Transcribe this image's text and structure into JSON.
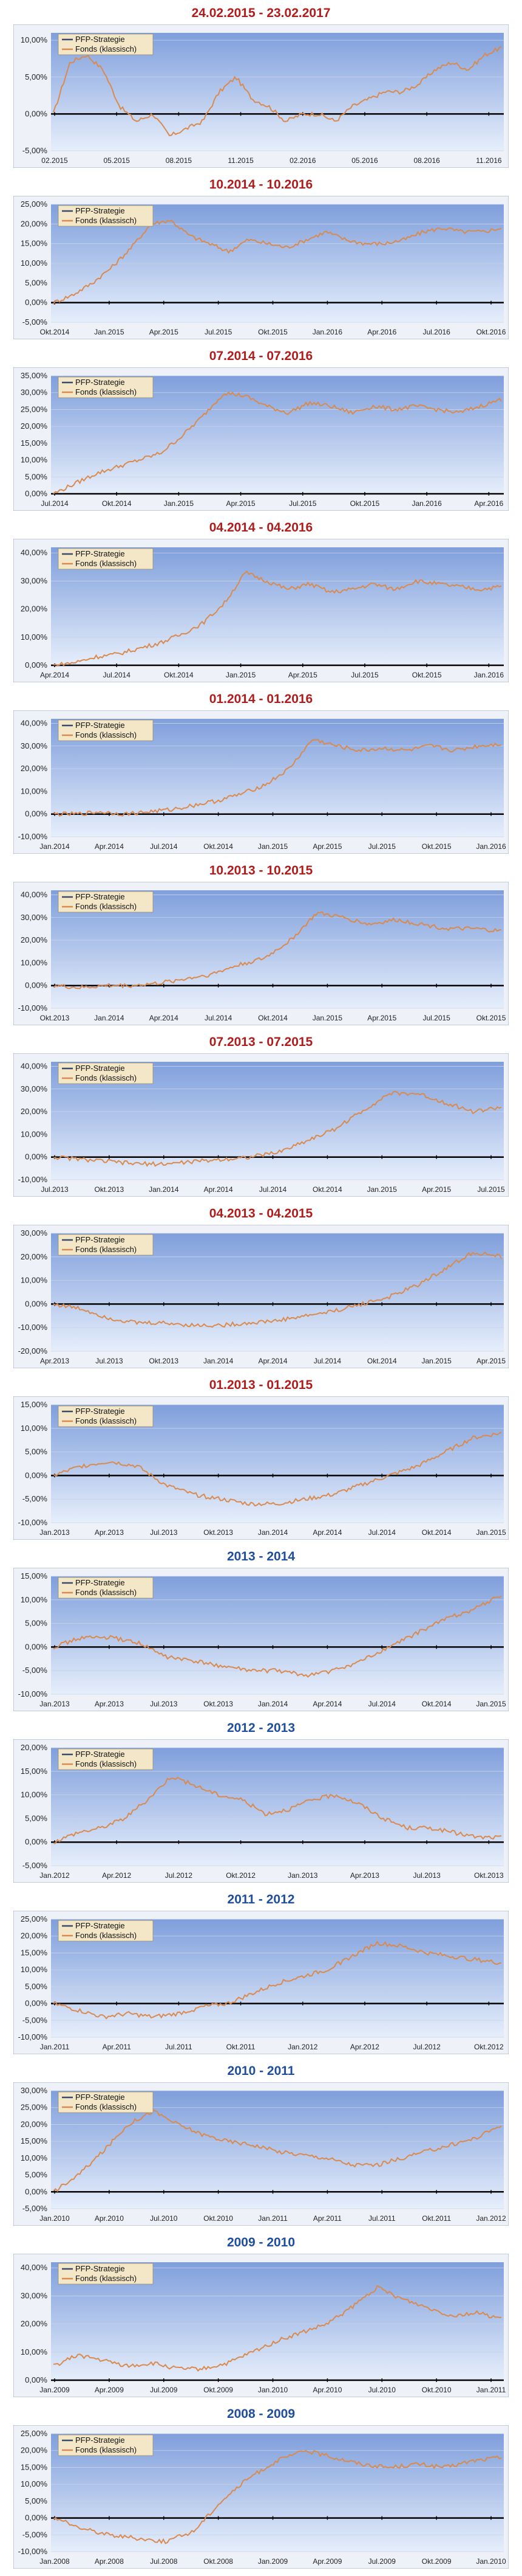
{
  "legend": {
    "series1": "PFP-Strategie",
    "series2": "Fonds (klassisch)"
  },
  "colors": {
    "series1": "#3a4a6b",
    "series2": "#d98a4f",
    "title_red": "#b01c1c",
    "title_blue": "#1f4e9c"
  },
  "chart_data": [
    {
      "type": "line",
      "title": "24.02.2015 - 23.02.2017",
      "title_color": "red",
      "yticks": [
        "10,00%",
        "5,00%",
        "0,00%",
        "-5,00%"
      ],
      "ylim": [
        -5,
        11
      ],
      "xticks": [
        "02.2015",
        "05.2015",
        "08.2015",
        "11.2015",
        "02.2016",
        "05.2016",
        "08.2016",
        "11.2016"
      ],
      "series": [
        {
          "name": "Fonds (klassisch)",
          "values": [
            0,
            7,
            8,
            6,
            1,
            -1,
            0,
            -3,
            -2,
            -1,
            3,
            5,
            2,
            1,
            -1,
            0,
            0,
            -1,
            1,
            2,
            3,
            3,
            4,
            6,
            7,
            6,
            8,
            9
          ]
        }
      ]
    },
    {
      "type": "line",
      "title": "10.2014 - 10.2016",
      "title_color": "red",
      "yticks": [
        "25,00%",
        "20,00%",
        "15,00%",
        "10,00%",
        "5,00%",
        "0,00%",
        "-5,00%"
      ],
      "ylim": [
        -5,
        25
      ],
      "xticks": [
        "Okt.2014",
        "Jan.2015",
        "Apr.2015",
        "Jul.2015",
        "Okt.2015",
        "Jan.2016",
        "Apr.2016",
        "Jul.2016",
        "Okt.2016"
      ],
      "series": [
        {
          "name": "Fonds (klassisch)",
          "values": [
            0,
            2,
            5,
            9,
            14,
            20,
            21,
            17,
            15,
            13,
            16,
            15,
            14,
            16,
            18,
            16,
            15,
            15,
            16,
            18,
            19,
            18,
            18,
            19
          ]
        }
      ]
    },
    {
      "type": "line",
      "title": "07.2014 - 07.2016",
      "title_color": "red",
      "yticks": [
        "35,00%",
        "30,00%",
        "25,00%",
        "20,00%",
        "15,00%",
        "10,00%",
        "5,00%",
        "0,00%"
      ],
      "ylim": [
        0,
        35
      ],
      "xticks": [
        "Jul.2014",
        "Okt.2014",
        "Jan.2015",
        "Apr.2015",
        "Jul.2015",
        "Okt.2015",
        "Jan.2016",
        "Apr.2016"
      ],
      "series": [
        {
          "name": "Fonds (klassisch)",
          "values": [
            0,
            3,
            6,
            8,
            10,
            12,
            17,
            23,
            30,
            29,
            26,
            24,
            27,
            26,
            24,
            26,
            25,
            26,
            25,
            24,
            26,
            28
          ]
        }
      ]
    },
    {
      "type": "line",
      "title": "04.2014 - 04.2016",
      "title_color": "red",
      "yticks": [
        "40,00%",
        "30,00%",
        "20,00%",
        "10,00%",
        "0,00%"
      ],
      "ylim": [
        0,
        42
      ],
      "xticks": [
        "Apr.2014",
        "Jul.2014",
        "Okt.2014",
        "Jan.2015",
        "Apr.2015",
        "Jul.2015",
        "Okt.2015",
        "Jan.2016"
      ],
      "series": [
        {
          "name": "Fonds (klassisch)",
          "values": [
            0,
            1,
            3,
            4,
            6,
            8,
            11,
            15,
            22,
            33,
            30,
            27,
            29,
            26,
            27,
            29,
            27,
            30,
            29,
            28,
            27,
            28
          ]
        }
      ]
    },
    {
      "type": "line",
      "title": "01.2014 - 01.2016",
      "title_color": "red",
      "yticks": [
        "40,00%",
        "30,00%",
        "20,00%",
        "10,00%",
        "0,00%",
        "-10,00%"
      ],
      "ylim": [
        -10,
        42
      ],
      "xticks": [
        "Jan.2014",
        "Apr.2014",
        "Jul.2014",
        "Okt.2014",
        "Jan.2015",
        "Apr.2015",
        "Jul.2015",
        "Okt.2015",
        "Jan.2016"
      ],
      "series": [
        {
          "name": "Fonds (klassisch)",
          "values": [
            0,
            0,
            1,
            0,
            1,
            2,
            4,
            6,
            9,
            13,
            20,
            33,
            30,
            28,
            29,
            28,
            30,
            28,
            30,
            31
          ]
        }
      ]
    },
    {
      "type": "line",
      "title": "10.2013 - 10.2015",
      "title_color": "red",
      "yticks": [
        "40,00%",
        "30,00%",
        "20,00%",
        "10,00%",
        "0,00%",
        "-10,00%"
      ],
      "ylim": [
        -10,
        42
      ],
      "xticks": [
        "Okt.2013",
        "Jan.2014",
        "Apr.2014",
        "Jul.2014",
        "Okt.2014",
        "Jan.2015",
        "Apr.2015",
        "Jul.2015",
        "Okt.2015"
      ],
      "series": [
        {
          "name": "Fonds (klassisch)",
          "values": [
            0,
            -1,
            0,
            0,
            1,
            3,
            5,
            9,
            12,
            20,
            32,
            30,
            27,
            29,
            27,
            25,
            25,
            24
          ]
        }
      ]
    },
    {
      "type": "line",
      "title": "07.2013 - 07.2015",
      "title_color": "red",
      "yticks": [
        "40,00%",
        "30,00%",
        "20,00%",
        "10,00%",
        "0,00%",
        "-10,00%"
      ],
      "ylim": [
        -10,
        42
      ],
      "xticks": [
        "Jul.2013",
        "Okt.2013",
        "Jan.2014",
        "Apr.2014",
        "Jul.2014",
        "Okt.2014",
        "Jan.2015",
        "Apr.2015",
        "Jul.2015"
      ],
      "series": [
        {
          "name": "Fonds (klassisch)",
          "values": [
            0,
            -1,
            -2,
            -3,
            -3,
            -2,
            -1,
            0,
            2,
            7,
            12,
            20,
            28,
            28,
            24,
            20,
            22
          ]
        }
      ]
    },
    {
      "type": "line",
      "title": "04.2013 - 04.2015",
      "title_color": "red",
      "yticks": [
        "30,00%",
        "20,00%",
        "10,00%",
        "0,00%",
        "-10,00%",
        "-20,00%"
      ],
      "ylim": [
        -20,
        30
      ],
      "xticks": [
        "Apr.2013",
        "Jul.2013",
        "Okt.2013",
        "Jan.2014",
        "Apr.2014",
        "Jul.2014",
        "Okt.2014",
        "Jan.2015",
        "Apr.2015"
      ],
      "series": [
        {
          "name": "Fonds (klassisch)",
          "values": [
            0,
            -2,
            -6,
            -8,
            -8,
            -9,
            -9,
            -8,
            -7,
            -5,
            -3,
            0,
            3,
            8,
            15,
            22,
            20
          ]
        }
      ]
    },
    {
      "type": "line",
      "title": "01.2013 - 01.2015",
      "title_color": "red",
      "yticks": [
        "15,00%",
        "10,00%",
        "5,00%",
        "0,00%",
        "-5,00%",
        "-10,00%"
      ],
      "ylim": [
        -10,
        15
      ],
      "xticks": [
        "Jan.2013",
        "Apr.2013",
        "Jul.2013",
        "Okt.2013",
        "Jan.2014",
        "Apr.2014",
        "Jul.2014",
        "Okt.2014",
        "Jan.2015"
      ],
      "series": [
        {
          "name": "Fonds (klassisch)",
          "values": [
            0,
            2,
            3,
            2,
            -2,
            -4,
            -5,
            -6,
            -6,
            -5,
            -4,
            -2,
            0,
            2,
            5,
            8,
            9
          ]
        }
      ]
    },
    {
      "type": "line",
      "title": "2013 - 2014",
      "title_color": "blue",
      "yticks": [
        "15,00%",
        "10,00%",
        "5,00%",
        "0,00%",
        "-5,00%",
        "-10,00%"
      ],
      "ylim": [
        -10,
        15
      ],
      "xticks": [
        "Jan.2013",
        "Apr.2013",
        "Jul.2013",
        "Okt.2013",
        "Jan.2014",
        "Apr.2014",
        "Jul.2014",
        "Okt.2014",
        "Jan.2015"
      ],
      "series": [
        {
          "name": "Fonds (klassisch)",
          "values": [
            0,
            2,
            2,
            1,
            -2,
            -3,
            -4,
            -5,
            -5,
            -6,
            -5,
            -3,
            0,
            3,
            6,
            8,
            11
          ]
        }
      ]
    },
    {
      "type": "line",
      "title": "2012 - 2013",
      "title_color": "blue",
      "yticks": [
        "20,00%",
        "15,00%",
        "10,00%",
        "5,00%",
        "0,00%",
        "-5,00%"
      ],
      "ylim": [
        -5,
        20
      ],
      "xticks": [
        "Jan.2012",
        "Apr.2012",
        "Jul.2012",
        "Okt.2012",
        "Jan.2013",
        "Apr.2013",
        "Jul.2013",
        "Okt.2013"
      ],
      "series": [
        {
          "name": "Fonds (klassisch)",
          "values": [
            0,
            2,
            3,
            5,
            9,
            14,
            12,
            10,
            9,
            6,
            7,
            9,
            10,
            8,
            5,
            3,
            3,
            2,
            1,
            1
          ]
        }
      ]
    },
    {
      "type": "line",
      "title": "2011 - 2012",
      "title_color": "blue",
      "yticks": [
        "25,00%",
        "20,00%",
        "15,00%",
        "10,00%",
        "5,00%",
        "0,00%",
        "-5,00%",
        "-10,00%"
      ],
      "ylim": [
        -10,
        25
      ],
      "xticks": [
        "Jan.2011",
        "Apr.2011",
        "Jul.2011",
        "Okt.2011",
        "Jan.2012",
        "Apr.2012",
        "Jul.2012",
        "Okt.2012"
      ],
      "series": [
        {
          "name": "Fonds (klassisch)",
          "values": [
            0,
            -2,
            -4,
            -3,
            -4,
            -3,
            -1,
            0,
            3,
            6,
            8,
            10,
            14,
            18,
            17,
            15,
            14,
            13,
            12
          ]
        }
      ]
    },
    {
      "type": "line",
      "title": "2010 - 2011",
      "title_color": "blue",
      "yticks": [
        "30,00%",
        "25,00%",
        "20,00%",
        "15,00%",
        "10,00%",
        "5,00%",
        "0,00%",
        "-5,00%"
      ],
      "ylim": [
        -5,
        30
      ],
      "xticks": [
        "Jan.2010",
        "Apr.2010",
        "Jul.2010",
        "Okt.2010",
        "Jan.2011",
        "Apr.2011",
        "Jul.2011",
        "Okt.2011",
        "Jan.2012"
      ],
      "series": [
        {
          "name": "Fonds (klassisch)",
          "values": [
            0,
            5,
            12,
            20,
            24,
            20,
            17,
            15,
            14,
            12,
            11,
            10,
            8,
            8,
            10,
            12,
            14,
            16,
            20
          ]
        }
      ]
    },
    {
      "type": "line",
      "title": "2009 - 2010",
      "title_color": "blue",
      "yticks": [
        "40,00%",
        "30,00%",
        "20,00%",
        "10,00%",
        "0,00%"
      ],
      "ylim": [
        0,
        42
      ],
      "xticks": [
        "Jan.2009",
        "Apr.2009",
        "Jul.2009",
        "Okt.2009",
        "Jan.2010",
        "Apr.2010",
        "Jul.2010",
        "Okt.2010",
        "Jan.2011"
      ],
      "series": [
        {
          "name": "Fonds (klassisch)",
          "values": [
            5,
            9,
            7,
            5,
            6,
            4,
            4,
            6,
            10,
            14,
            17,
            20,
            26,
            33,
            29,
            26,
            23,
            24,
            22
          ]
        }
      ]
    },
    {
      "type": "line",
      "title": "2008 - 2009",
      "title_color": "blue",
      "yticks": [
        "25,00%",
        "20,00%",
        "15,00%",
        "10,00%",
        "5,00%",
        "0,00%",
        "-5,00%",
        "-10,00%"
      ],
      "ylim": [
        -10,
        25
      ],
      "xticks": [
        "Jan.2008",
        "Apr.2008",
        "Jul.2008",
        "Okt.2008",
        "Jan.2009",
        "Apr.2009",
        "Jul.2009",
        "Okt.2009",
        "Jan.2010"
      ],
      "series": [
        {
          "name": "Fonds (klassisch)",
          "values": [
            0,
            -3,
            -5,
            -6,
            -7,
            -4,
            5,
            12,
            17,
            20,
            18,
            16,
            15,
            16,
            15,
            17,
            18
          ]
        }
      ]
    }
  ]
}
